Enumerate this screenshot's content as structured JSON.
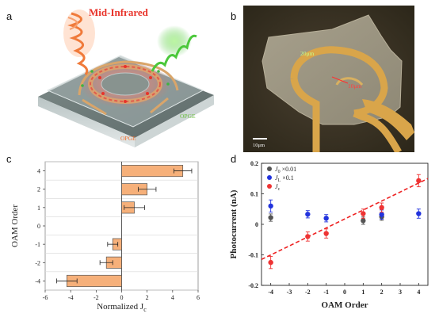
{
  "panels": {
    "a": {
      "letter": "a",
      "title": "Mid-Infrared",
      "labels": {
        "opge_left": "OPGE",
        "opge_right": "OPGE"
      },
      "colors": {
        "title": "#e8332a",
        "opge_left": "#f07030",
        "opge_right": "#7ad04a"
      }
    },
    "b": {
      "letter": "b",
      "label_20um": "20μm",
      "label_10um": "10μm",
      "scale_bar_text": "10μm"
    },
    "c": {
      "letter": "c"
    },
    "d": {
      "letter": "d"
    }
  },
  "chart_data": [
    {
      "panel": "c",
      "type": "bar",
      "orientation": "horizontal",
      "categories": [
        "4",
        "2",
        "1",
        "0",
        "-1",
        "-2",
        "-4"
      ],
      "values": [
        4.8,
        2.0,
        1.0,
        0.0,
        -0.7,
        -1.2,
        -4.3
      ],
      "errors": [
        0.7,
        0.7,
        0.8,
        0.0,
        0.4,
        0.5,
        0.8
      ],
      "xlabel": "Normalized J",
      "xlabel_sub": "c",
      "ylabel": "OAM Order",
      "xlim": [
        -6,
        6
      ],
      "xticks": [
        -6,
        -4,
        -2,
        0,
        2,
        4,
        6
      ],
      "grid": true,
      "bar_color": "#f6b07a"
    },
    {
      "panel": "d",
      "type": "scatter",
      "xlabel": "OAM Order",
      "ylabel": "Photocurrent (nA)",
      "xlim": [
        -4.5,
        4.5
      ],
      "ylim": [
        -0.2,
        0.2
      ],
      "xticks": [
        -4,
        -3,
        -2,
        -1,
        0,
        1,
        2,
        3,
        4
      ],
      "yticks": [
        -0.2,
        -0.1,
        0.0,
        0.1,
        0.2
      ],
      "ytick_labels": [
        "-0.2",
        "-0.1",
        "0",
        "0.1",
        "0.2"
      ],
      "series": [
        {
          "name": "J0 ×0.01",
          "legend_main": "J",
          "legend_sub": "0",
          "legend_rest": " ×0.01",
          "color": "#555555",
          "x": [
            -4,
            1,
            2
          ],
          "y": [
            0.022,
            0.012,
            0.025
          ],
          "err": [
            0.012,
            0.012,
            0.012
          ]
        },
        {
          "name": "JL ×0.1",
          "legend_main": "J",
          "legend_sub": "L",
          "legend_rest": "  ×0.1",
          "color": "#2233dd",
          "x": [
            -4,
            -2,
            -1,
            2,
            4
          ],
          "y": [
            0.06,
            0.033,
            0.02,
            0.032,
            0.035
          ],
          "err": [
            0.02,
            0.012,
            0.012,
            0.015,
            0.015
          ]
        },
        {
          "name": "Jc",
          "legend_main": "J",
          "legend_sub": "c",
          "legend_rest": "",
          "color": "#ee3333",
          "x": [
            -4,
            -2,
            -1,
            1,
            2,
            4
          ],
          "y": [
            -0.125,
            -0.04,
            -0.03,
            0.035,
            0.055,
            0.143
          ],
          "err": [
            0.02,
            0.015,
            0.015,
            0.015,
            0.015,
            0.02
          ]
        }
      ],
      "fit_line": {
        "x": [
          -4.5,
          4.5
        ],
        "y": [
          -0.115,
          0.15
        ],
        "color": "#ee2222",
        "style": "dashed"
      }
    }
  ]
}
